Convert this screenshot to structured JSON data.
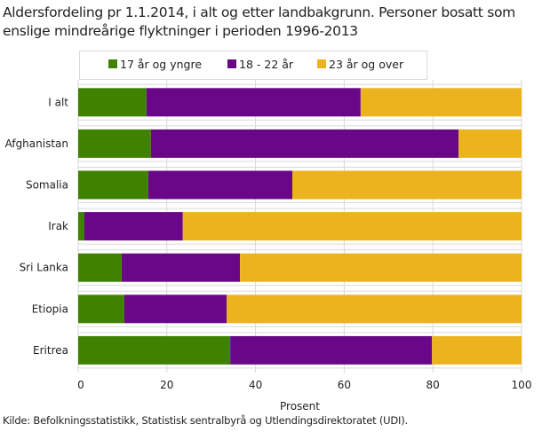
{
  "chart_data": {
    "type": "bar",
    "orientation": "horizontal",
    "stacked": true,
    "title": "Aldersfordeling pr 1.1.2014, i alt og etter landbakgrunn. Personer bosatt som enslige mindreårige flyktninger i perioden 1996-2013",
    "categories": [
      "I alt",
      "Afghanistan",
      "Somalia",
      "Irak",
      "Sri Lanka",
      "Etiopia",
      "Eritrea"
    ],
    "series": [
      {
        "name": "17 år og yngre",
        "color": "#3e8200",
        "values": [
          15.4,
          16.4,
          15.8,
          1.4,
          9.8,
          10.4,
          34.3
        ]
      },
      {
        "name": "18 - 22 år",
        "color": "#690788",
        "values": [
          48.3,
          69.4,
          32.5,
          22.2,
          26.7,
          23.1,
          45.5
        ]
      },
      {
        "name": "23 år og over",
        "color": "#ecb31f",
        "values": [
          36.3,
          14.2,
          51.7,
          76.4,
          63.5,
          66.5,
          20.2
        ]
      }
    ],
    "xlabel": "Prosent",
    "ylabel": "",
    "xlim": [
      0,
      100
    ],
    "xticks": [
      0,
      20,
      40,
      60,
      80,
      100
    ],
    "grid": true,
    "legend": "top"
  },
  "source": "Kilde: Befolkningsstatistikk, Statistisk sentralbyrå og Utlendingsdirektoratet (UDI)."
}
